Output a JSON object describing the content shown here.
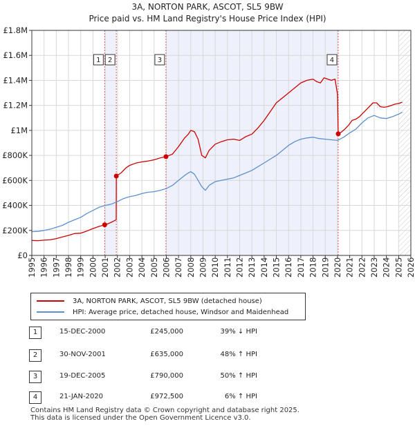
{
  "chart_data": {
    "type": "line",
    "title": "3A, NORTON PARK, ASCOT, SL5 9BW",
    "subtitle": "Price paid vs. HM Land Registry's House Price Index (HPI)",
    "xlim": [
      1995,
      2026
    ],
    "ylim": [
      0,
      1800000
    ],
    "yticks": [
      0,
      200000,
      400000,
      600000,
      800000,
      1000000,
      1200000,
      1400000,
      1600000,
      1800000
    ],
    "ytick_labels": [
      "£0",
      "£200K",
      "£400K",
      "£600K",
      "£800K",
      "£1M",
      "£1.2M",
      "£1.4M",
      "£1.6M",
      "£1.8M"
    ],
    "xticks": [
      1995,
      1996,
      1997,
      1998,
      1999,
      2000,
      2001,
      2002,
      2003,
      2004,
      2005,
      2006,
      2007,
      2008,
      2009,
      2010,
      2011,
      2012,
      2013,
      2014,
      2015,
      2016,
      2017,
      2018,
      2019,
      2020,
      2021,
      2022,
      2023,
      2024,
      2025,
      2026
    ],
    "grid": true,
    "shaded_regions": [
      [
        2000.96,
        2001.91
      ],
      [
        2005.97,
        2020.06
      ]
    ],
    "hatched_from": 2025.0,
    "colors": {
      "property": "#cc0000",
      "hpi": "#5b8fcf",
      "marker_line": "#e06060",
      "shade": "#eef0fb",
      "grid": "#d8d8d8"
    },
    "series": [
      {
        "name": "3A, NORTON PARK, ASCOT, SL5 9BW (detached house)",
        "key": "property",
        "x": [
          1995.0,
          1995.5,
          1996.0,
          1996.5,
          1997.0,
          1997.5,
          1998.0,
          1998.5,
          1999.0,
          1999.5,
          2000.0,
          2000.5,
          2000.96,
          2001.2,
          2001.5,
          2001.7,
          2001.9,
          2001.91,
          2002.3,
          2002.7,
          2003.0,
          2003.5,
          2004.0,
          2004.5,
          2005.0,
          2005.5,
          2005.97,
          2006.5,
          2007.0,
          2007.5,
          2007.8,
          2008.0,
          2008.3,
          2008.6,
          2008.9,
          2009.2,
          2009.5,
          2010.0,
          2010.5,
          2011.0,
          2011.5,
          2012.0,
          2012.5,
          2013.0,
          2013.5,
          2014.0,
          2014.5,
          2015.0,
          2015.5,
          2016.0,
          2016.5,
          2017.0,
          2017.5,
          2018.0,
          2018.3,
          2018.6,
          2018.9,
          2019.2,
          2019.5,
          2019.8,
          2020.0,
          2020.06,
          2020.3,
          2020.6,
          2020.9,
          2021.2,
          2021.5,
          2021.8,
          2022.0,
          2022.3,
          2022.6,
          2022.9,
          2023.2,
          2023.5,
          2023.8,
          2024.1,
          2024.4,
          2024.7,
          2025.0,
          2025.3
        ],
        "y": [
          120000,
          118000,
          122000,
          125000,
          135000,
          148000,
          160000,
          175000,
          178000,
          195000,
          215000,
          232000,
          245000,
          252000,
          265000,
          275000,
          285000,
          635000,
          660000,
          700000,
          720000,
          738000,
          748000,
          755000,
          765000,
          780000,
          790000,
          810000,
          870000,
          940000,
          970000,
          1000000,
          990000,
          930000,
          800000,
          780000,
          840000,
          890000,
          910000,
          925000,
          930000,
          920000,
          950000,
          970000,
          1020000,
          1080000,
          1150000,
          1220000,
          1260000,
          1300000,
          1340000,
          1380000,
          1400000,
          1410000,
          1390000,
          1380000,
          1420000,
          1410000,
          1400000,
          1410000,
          1290000,
          972500,
          985000,
          1010000,
          1040000,
          1080000,
          1090000,
          1110000,
          1130000,
          1160000,
          1190000,
          1220000,
          1220000,
          1190000,
          1185000,
          1190000,
          1200000,
          1210000,
          1215000,
          1225000
        ]
      },
      {
        "name": "HPI: Average price, detached house, Windsor and Maidenhead",
        "key": "hpi",
        "x": [
          1995.0,
          1995.5,
          1996.0,
          1996.5,
          1997.0,
          1997.5,
          1998.0,
          1998.5,
          1999.0,
          1999.5,
          2000.0,
          2000.5,
          2001.0,
          2001.5,
          2002.0,
          2002.5,
          2003.0,
          2003.5,
          2004.0,
          2004.5,
          2005.0,
          2005.5,
          2006.0,
          2006.5,
          2007.0,
          2007.5,
          2007.8,
          2008.0,
          2008.3,
          2008.6,
          2008.9,
          2009.2,
          2009.5,
          2010.0,
          2010.5,
          2011.0,
          2011.5,
          2012.0,
          2012.5,
          2013.0,
          2013.5,
          2014.0,
          2014.5,
          2015.0,
          2015.5,
          2016.0,
          2016.5,
          2017.0,
          2017.5,
          2018.0,
          2018.5,
          2019.0,
          2019.5,
          2020.0,
          2020.5,
          2021.0,
          2021.5,
          2022.0,
          2022.5,
          2023.0,
          2023.5,
          2024.0,
          2024.5,
          2025.0,
          2025.3
        ],
        "y": [
          190000,
          192000,
          200000,
          210000,
          225000,
          240000,
          265000,
          285000,
          305000,
          335000,
          360000,
          385000,
          400000,
          410000,
          430000,
          455000,
          470000,
          480000,
          495000,
          505000,
          510000,
          520000,
          535000,
          560000,
          600000,
          640000,
          660000,
          670000,
          650000,
          600000,
          550000,
          520000,
          560000,
          590000,
          600000,
          610000,
          620000,
          640000,
          660000,
          680000,
          710000,
          740000,
          770000,
          800000,
          840000,
          880000,
          910000,
          930000,
          940000,
          945000,
          935000,
          930000,
          925000,
          920000,
          945000,
          980000,
          1010000,
          1060000,
          1100000,
          1120000,
          1100000,
          1095000,
          1110000,
          1130000,
          1145000
        ]
      }
    ],
    "sales": [
      {
        "num": "1",
        "year": 2000.96,
        "price": 245000
      },
      {
        "num": "2",
        "year": 2001.91,
        "price": 635000
      },
      {
        "num": "3",
        "year": 2005.97,
        "price": 790000
      },
      {
        "num": "4",
        "year": 2020.06,
        "price": 972500
      }
    ]
  },
  "legend": {
    "property_label": "3A, NORTON PARK, ASCOT, SL5 9BW (detached house)",
    "hpi_label": "HPI: Average price, detached house, Windsor and Maidenhead"
  },
  "sales_table": [
    {
      "num": "1",
      "date": "15-DEC-2000",
      "price": "£245,000",
      "hpi": "39% ↓ HPI"
    },
    {
      "num": "2",
      "date": "30-NOV-2001",
      "price": "£635,000",
      "hpi": "48% ↑ HPI"
    },
    {
      "num": "3",
      "date": "19-DEC-2005",
      "price": "£790,000",
      "hpi": "50% ↑ HPI"
    },
    {
      "num": "4",
      "date": "21-JAN-2020",
      "price": "£972,500",
      "hpi": "6% ↑ HPI"
    }
  ],
  "footer": {
    "line1": "Contains HM Land Registry data © Crown copyright and database right 2025.",
    "line2": "This data is licensed under the Open Government Licence v3.0."
  }
}
